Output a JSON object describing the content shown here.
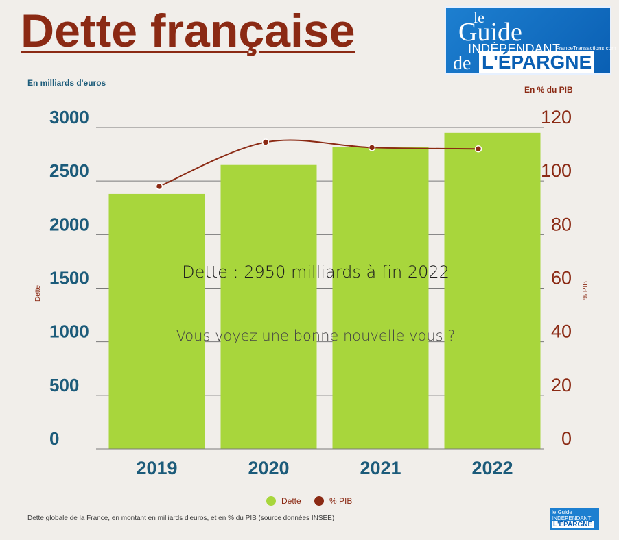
{
  "header": {
    "title": "Dette française"
  },
  "logo": {
    "line1": "le",
    "line2": "Guide",
    "line3": "INDÉPENDANT",
    "site": "FranceTransactions.com",
    "line4": "de",
    "line5": "L'ÉPARGNE"
  },
  "logo_small": {
    "line1": "le Guide",
    "line2": "INDÉPENDANT",
    "line3": "L'ÉPARGNE"
  },
  "annotations": {
    "headline": "Dette : 2950 milliards à fin 2022",
    "question": "Vous voyez une bonne nouvelle vous ?"
  },
  "caption": "Dette globale de la France, en montant en milliards d'euros, et en % du PIB (source données INSEE)",
  "colors": {
    "bars": "#a8d63c",
    "line": "#8b2a14",
    "left_axis": "#1c5b7a",
    "right_axis": "#8b2a14",
    "title": "#8b2a14"
  },
  "chart_data": {
    "type": "bar",
    "categories": [
      "2019",
      "2020",
      "2021",
      "2022"
    ],
    "series": [
      {
        "name": "Dette",
        "axis": "left",
        "type": "bar",
        "values": [
          2380,
          2650,
          2820,
          2950
        ]
      },
      {
        "name": "% PIB",
        "axis": "right",
        "type": "line",
        "values": [
          98,
          114.5,
          112.5,
          112
        ]
      }
    ],
    "left_axis": {
      "label": "En milliards d'euros",
      "side_label": "Dette",
      "ticks": [
        "0",
        "500",
        "1000",
        "1500",
        "2000",
        "2500",
        "3000"
      ],
      "range": [
        0,
        3000
      ]
    },
    "right_axis": {
      "label": "En % du PIB",
      "side_label": "% PIB",
      "ticks": [
        "0",
        "20",
        "40",
        "60",
        "80",
        "100",
        "120"
      ],
      "range": [
        0,
        120
      ]
    },
    "legend": {
      "position": "bottom-center",
      "items": [
        "Dette",
        "% PIB"
      ]
    },
    "grid": true
  }
}
